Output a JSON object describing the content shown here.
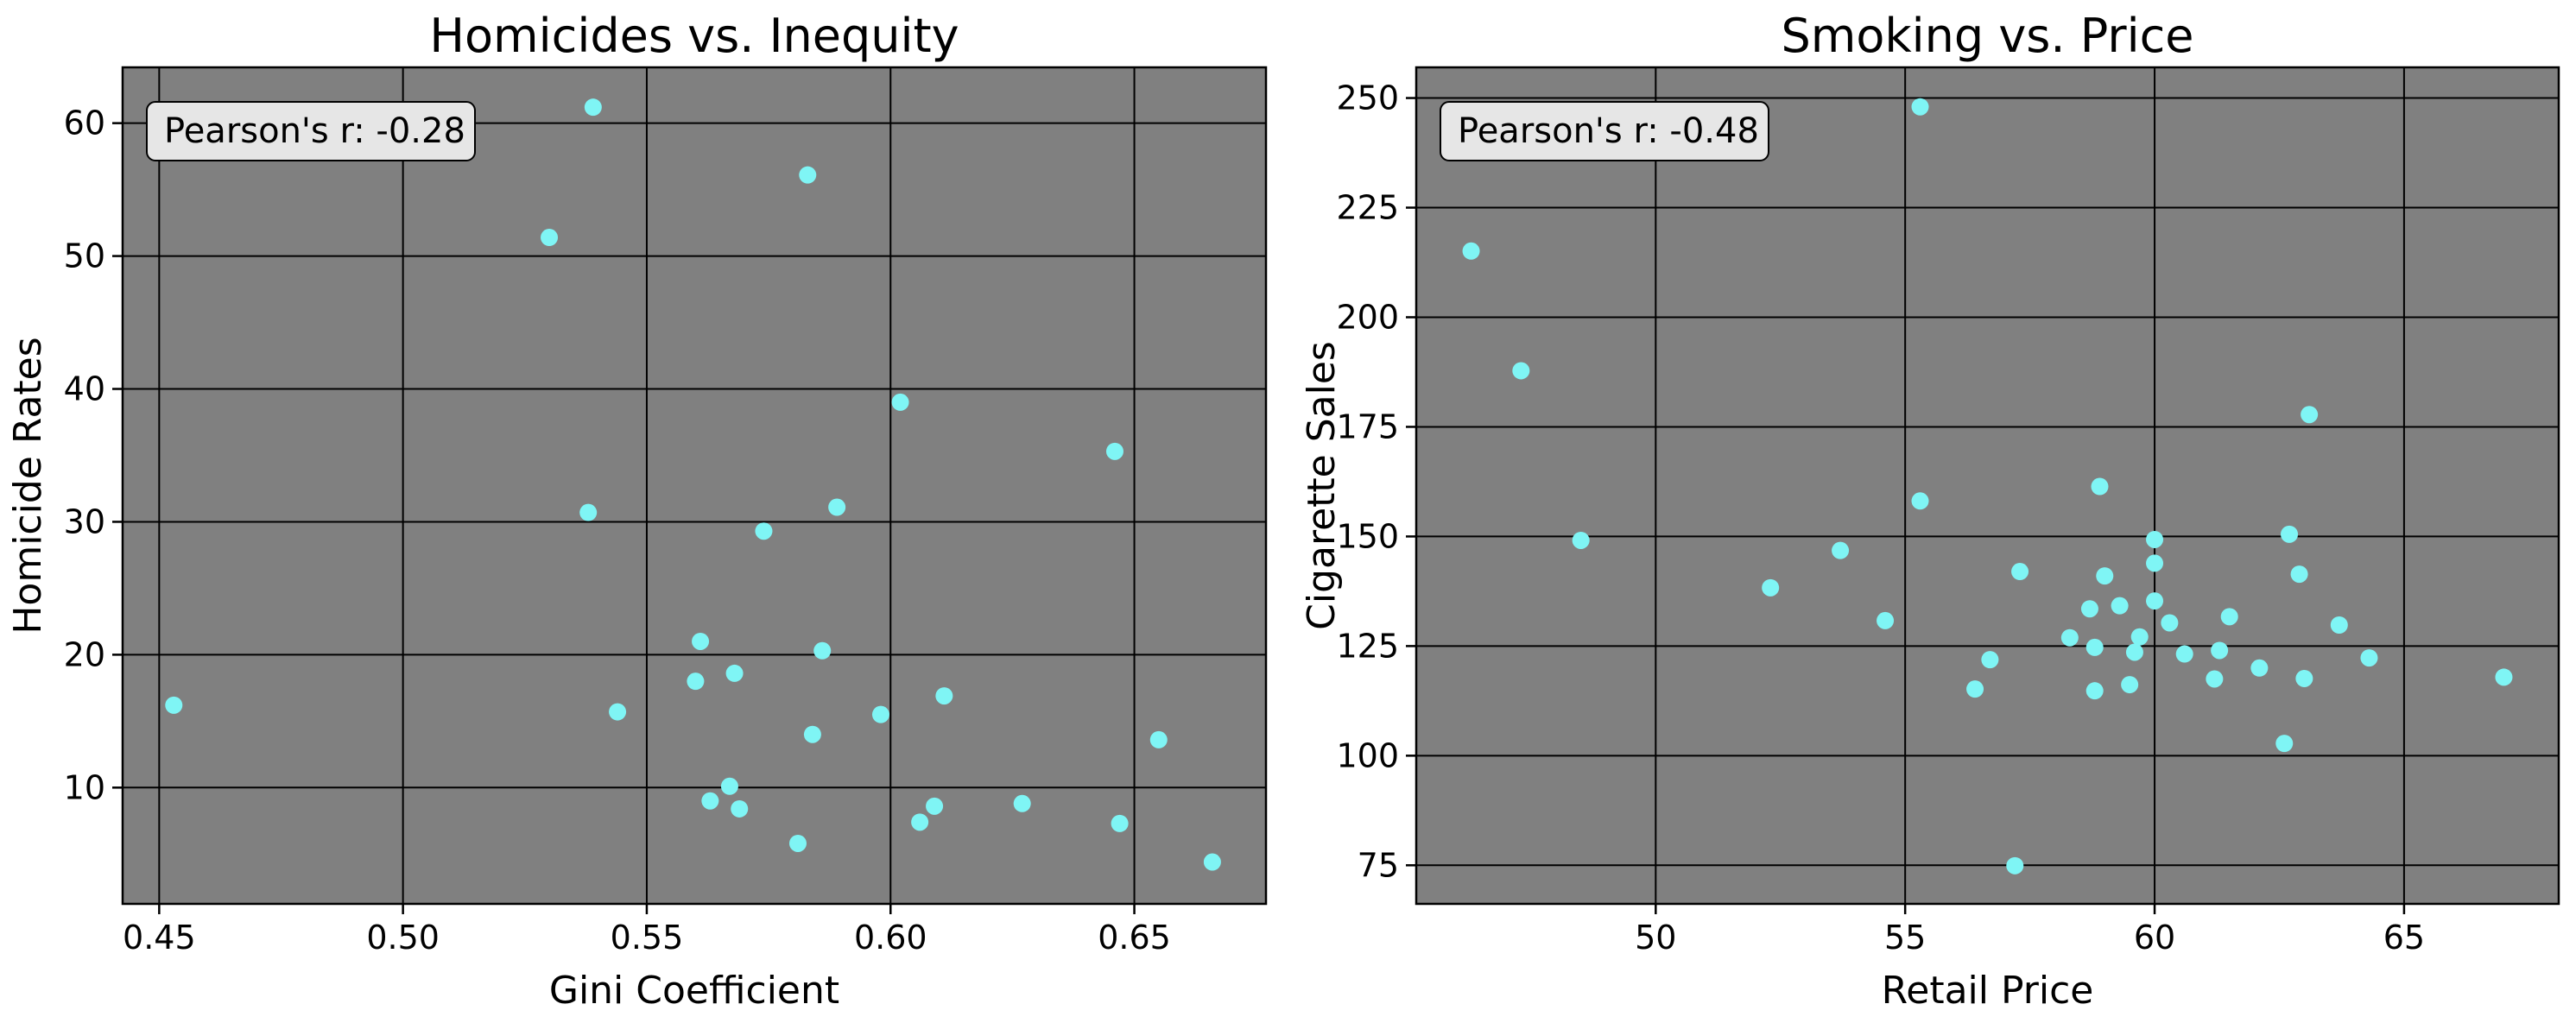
{
  "chart_data": [
    {
      "type": "scatter",
      "title": "Homicides vs. Inequity",
      "xlabel": "Gini Coefficient",
      "ylabel": "Homicide Rates",
      "xlim": [
        0.4425,
        0.677
      ],
      "ylim": [
        1.25,
        64.2
      ],
      "xticks": [
        0.45,
        0.5,
        0.55,
        0.6,
        0.65
      ],
      "xtick_labels": [
        "0.45",
        "0.50",
        "0.55",
        "0.60",
        "0.65"
      ],
      "yticks": [
        10,
        20,
        30,
        40,
        50,
        60
      ],
      "ytick_labels": [
        "10",
        "20",
        "30",
        "40",
        "50",
        "60"
      ],
      "grid": true,
      "background": "#808080",
      "point_color": "#7ff5f5",
      "annotation": "Pearson's r: -0.28",
      "points": [
        {
          "x": 0.453,
          "y": 16.2
        },
        {
          "x": 0.53,
          "y": 51.4
        },
        {
          "x": 0.539,
          "y": 61.2
        },
        {
          "x": 0.538,
          "y": 30.7
        },
        {
          "x": 0.544,
          "y": 15.7
        },
        {
          "x": 0.56,
          "y": 18.0
        },
        {
          "x": 0.561,
          "y": 21.0
        },
        {
          "x": 0.563,
          "y": 9.0
        },
        {
          "x": 0.567,
          "y": 10.1
        },
        {
          "x": 0.568,
          "y": 18.6
        },
        {
          "x": 0.569,
          "y": 8.4
        },
        {
          "x": 0.574,
          "y": 29.3
        },
        {
          "x": 0.581,
          "y": 5.8
        },
        {
          "x": 0.583,
          "y": 56.1
        },
        {
          "x": 0.584,
          "y": 14.0
        },
        {
          "x": 0.586,
          "y": 20.3
        },
        {
          "x": 0.589,
          "y": 31.1
        },
        {
          "x": 0.598,
          "y": 15.5
        },
        {
          "x": 0.602,
          "y": 39.0
        },
        {
          "x": 0.606,
          "y": 7.4
        },
        {
          "x": 0.609,
          "y": 8.6
        },
        {
          "x": 0.611,
          "y": 16.9
        },
        {
          "x": 0.627,
          "y": 8.8
        },
        {
          "x": 0.646,
          "y": 35.3
        },
        {
          "x": 0.647,
          "y": 7.3
        },
        {
          "x": 0.655,
          "y": 13.6
        },
        {
          "x": 0.666,
          "y": 4.4
        }
      ]
    },
    {
      "type": "scatter",
      "title": "Smoking vs. Price",
      "xlabel": "Retail Price",
      "ylabel": "Cigarette Sales",
      "xlim": [
        45.2,
        68.1
      ],
      "ylim": [
        66.2,
        257.0
      ],
      "xticks": [
        50,
        55,
        60,
        65
      ],
      "xtick_labels": [
        "50",
        "55",
        "60",
        "65"
      ],
      "yticks": [
        75,
        100,
        125,
        150,
        175,
        200,
        225,
        250
      ],
      "ytick_labels": [
        "75",
        "100",
        "125",
        "150",
        "175",
        "200",
        "225",
        "250"
      ],
      "grid": true,
      "background": "#808080",
      "point_color": "#7ff5f5",
      "annotation": "Pearson's r: -0.48",
      "points": [
        {
          "x": 46.3,
          "y": 215.1
        },
        {
          "x": 47.3,
          "y": 187.8
        },
        {
          "x": 48.5,
          "y": 149.1
        },
        {
          "x": 52.3,
          "y": 138.3
        },
        {
          "x": 53.7,
          "y": 146.8
        },
        {
          "x": 54.6,
          "y": 130.8
        },
        {
          "x": 55.3,
          "y": 248.0
        },
        {
          "x": 55.3,
          "y": 158.1
        },
        {
          "x": 56.4,
          "y": 115.2
        },
        {
          "x": 56.7,
          "y": 121.9
        },
        {
          "x": 57.2,
          "y": 74.9
        },
        {
          "x": 57.3,
          "y": 142.0
        },
        {
          "x": 58.3,
          "y": 126.9
        },
        {
          "x": 58.7,
          "y": 133.5
        },
        {
          "x": 58.8,
          "y": 124.7
        },
        {
          "x": 58.8,
          "y": 114.8
        },
        {
          "x": 58.9,
          "y": 161.4
        },
        {
          "x": 59.0,
          "y": 141.0
        },
        {
          "x": 59.3,
          "y": 134.2
        },
        {
          "x": 59.5,
          "y": 116.2
        },
        {
          "x": 59.6,
          "y": 123.6
        },
        {
          "x": 59.7,
          "y": 127.1
        },
        {
          "x": 60.0,
          "y": 149.3
        },
        {
          "x": 60.0,
          "y": 143.9
        },
        {
          "x": 60.0,
          "y": 135.3
        },
        {
          "x": 60.3,
          "y": 130.3
        },
        {
          "x": 60.6,
          "y": 123.2
        },
        {
          "x": 61.2,
          "y": 117.5
        },
        {
          "x": 61.3,
          "y": 124.0
        },
        {
          "x": 61.5,
          "y": 131.7
        },
        {
          "x": 62.1,
          "y": 120.0
        },
        {
          "x": 62.6,
          "y": 102.8
        },
        {
          "x": 62.7,
          "y": 150.5
        },
        {
          "x": 62.9,
          "y": 141.4
        },
        {
          "x": 63.0,
          "y": 117.6
        },
        {
          "x": 63.1,
          "y": 177.8
        },
        {
          "x": 63.7,
          "y": 129.8
        },
        {
          "x": 64.3,
          "y": 122.3
        },
        {
          "x": 67.0,
          "y": 117.9
        }
      ]
    }
  ]
}
